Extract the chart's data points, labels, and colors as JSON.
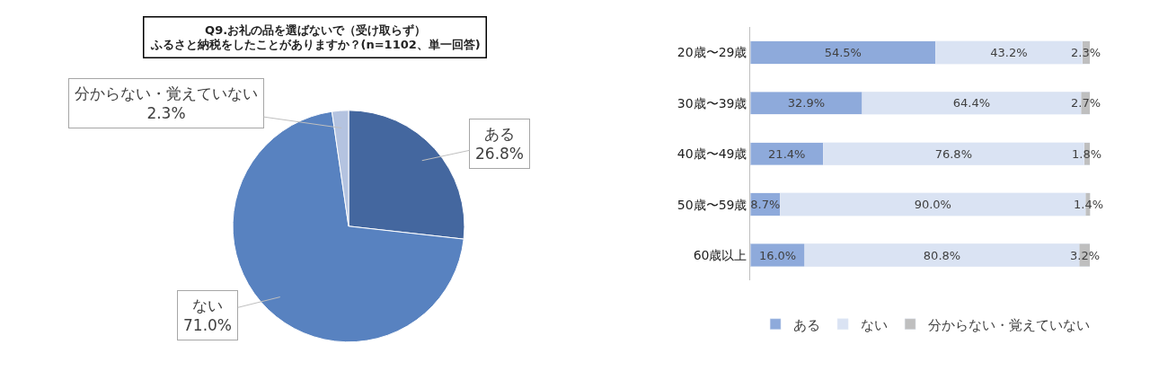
{
  "chart_data": [
    {
      "type": "pie",
      "title": "Q9.お礼の品を選ばないで（受け取らず）ふるさと納税をしたことがありますか？(n=1102、単一回答)",
      "categories": [
        "ある",
        "ない",
        "分からない・覚えていない"
      ],
      "values": [
        26.8,
        71.0,
        2.3
      ],
      "value_labels": [
        "26.8%",
        "71.0%",
        "2.3%"
      ],
      "colors": [
        "#44679f",
        "#5882c0",
        "#b4c3e0"
      ],
      "legend": false
    },
    {
      "type": "bar",
      "orientation": "horizontal",
      "stacked": true,
      "categories": [
        "20歳〜29歳",
        "30歳〜39歳",
        "40歳〜49歳",
        "50歳〜59歳",
        "60歳以上"
      ],
      "xlim": [
        0,
        100
      ],
      "tick_labels": "y",
      "legend": "bottom",
      "series": [
        {
          "name": "ある",
          "color": "#8eaadb",
          "values": [
            54.5,
            32.9,
            21.4,
            8.7,
            16.0
          ],
          "value_labels": [
            "54.5%",
            "32.9%",
            "21.4%",
            "8.7%",
            "16.0%"
          ]
        },
        {
          "name": "ない",
          "color": "#dae3f3",
          "values": [
            43.2,
            64.4,
            76.8,
            90.0,
            80.8
          ],
          "value_labels": [
            "43.2%",
            "64.4%",
            "76.8%",
            "90.0%",
            "80.8%"
          ]
        },
        {
          "name": "分からない・覚えていない",
          "color": "#bfbfbf",
          "values": [
            2.3,
            2.7,
            1.8,
            1.4,
            3.2
          ],
          "value_labels": [
            "2.3%",
            "2.7%",
            "1.8%",
            "1.4%",
            "3.2%"
          ]
        }
      ]
    }
  ]
}
